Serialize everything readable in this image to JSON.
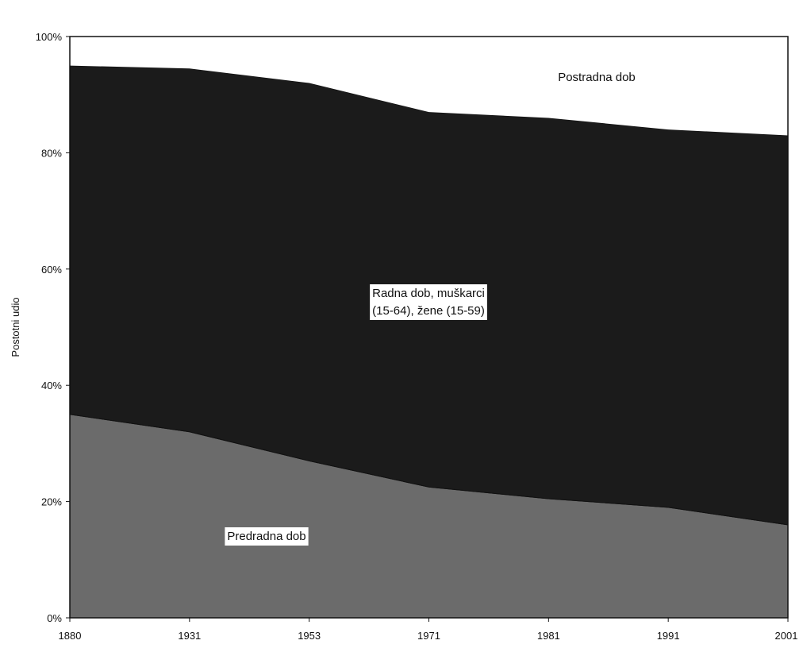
{
  "chart_data": {
    "type": "area",
    "stacked": true,
    "percent": true,
    "categories": [
      "1880",
      "1931",
      "1953",
      "1971",
      "1981",
      "1991",
      "2001"
    ],
    "x_intermediate": [
      "1880",
      "1890",
      "1931",
      "1940",
      "1953",
      "1971",
      "1981",
      "1991",
      "2001"
    ],
    "ylabel": "Postotni udio",
    "ylim": [
      0,
      100
    ],
    "yticks": [
      "0%",
      "20%",
      "40%",
      "60%",
      "80%",
      "100%"
    ],
    "grid": false,
    "series": [
      {
        "name": "Predradna dob",
        "label_lines": [
          "Predradna dob"
        ],
        "color": "#6b6b6b",
        "values": [
          35,
          32,
          27,
          22.5,
          20.5,
          19,
          16
        ]
      },
      {
        "name": "Radna dob, muškarci (15-64), žene (15-59)",
        "label_lines": [
          "Radna dob, muškarci",
          "(15-64), žene (15-59)"
        ],
        "color": "#1b1b1b",
        "values": [
          60,
          62.5,
          65,
          64.5,
          65.5,
          65,
          67
        ]
      },
      {
        "name": "Postradna dob",
        "label_lines": [
          "Postradna dob"
        ],
        "color": "#ffffff",
        "values": [
          5,
          5.5,
          8,
          13,
          14,
          16,
          17
        ]
      }
    ]
  }
}
